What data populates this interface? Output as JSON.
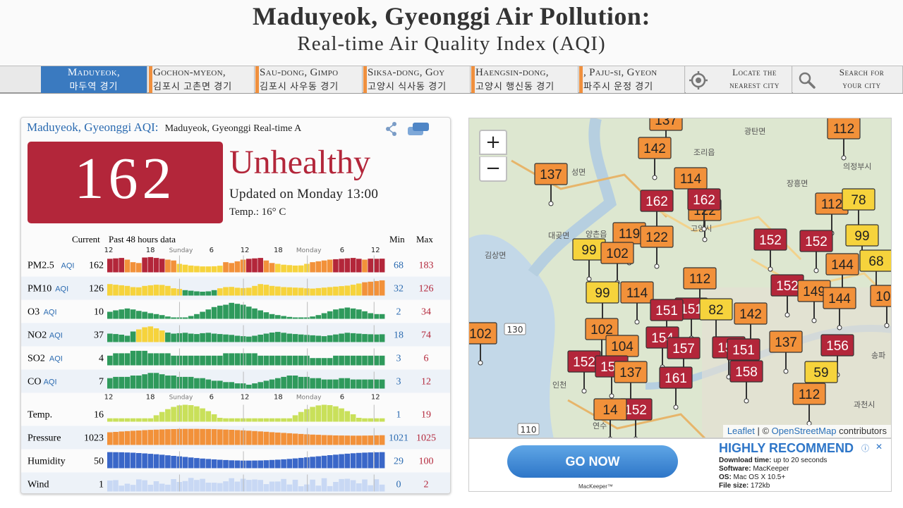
{
  "header": {
    "title": "Maduyeok, Gyeonggi Air Pollution:",
    "subtitle": "Real-time Air Quality Index (AQI)"
  },
  "tabs": [
    {
      "name": "Maduyeok,",
      "local": "마두역 경기",
      "active": true
    },
    {
      "name": "Gochon-myeon,",
      "local": "김포시 고촌면 경기",
      "active": false
    },
    {
      "name": "Sau-dong, Gimpo",
      "local": "김포시 사우동 경기",
      "active": false
    },
    {
      "name": "Siksa-dong, Goy",
      "local": "고양시 식사동 경기",
      "active": false
    },
    {
      "name": "Haengsin-dong,",
      "local": "고양시 행신동 경기",
      "active": false
    },
    {
      "name": ", Paju-si, Gyeon",
      "local": "파주시 운정 경기",
      "active": false
    }
  ],
  "tools": {
    "locate_line1": "Locate the",
    "locate_line2": "nearest city",
    "search_line1": "Search for",
    "search_line2": "your city"
  },
  "panel": {
    "city_link": "Maduyeok, Gyeonggi AQI:",
    "description": "Maduyeok, Gyeonggi Real-time A",
    "aqi": "162",
    "level": "Unhealthy",
    "updated": "Updated on Monday 13:00",
    "temp": "Temp.: 16° C",
    "aqi_color": "#b3263a"
  },
  "history": {
    "current_label": "Current",
    "past_label": "Past 48 hours data",
    "min_label": "Min",
    "max_label": "Max",
    "time_ticks": [
      "12",
      "18",
      "Sunday",
      "6",
      "12",
      "18",
      "Monday",
      "6",
      "12"
    ],
    "rows": [
      {
        "label": "PM2.5",
        "unit": "AQI",
        "current": "162",
        "min": "68",
        "max": "183",
        "kind": "aqi"
      },
      {
        "label": "PM10",
        "unit": "AQI",
        "current": "126",
        "min": "32",
        "max": "126",
        "kind": "aqi"
      },
      {
        "label": "O3",
        "unit": "AQI",
        "current": "10",
        "min": "2",
        "max": "34",
        "kind": "aqi"
      },
      {
        "label": "NO2",
        "unit": "AQI",
        "current": "37",
        "min": "18",
        "max": "74",
        "kind": "aqi"
      },
      {
        "label": "SO2",
        "unit": "AQI",
        "current": "4",
        "min": "3",
        "max": "6",
        "kind": "aqi"
      },
      {
        "label": "CO",
        "unit": "AQI",
        "current": "7",
        "min": "3",
        "max": "12",
        "kind": "aqi"
      },
      {
        "label": "Temp.",
        "unit": "",
        "current": "16",
        "min": "1",
        "max": "19",
        "kind": "temp"
      },
      {
        "label": "Pressure",
        "unit": "",
        "current": "1023",
        "min": "1021",
        "max": "1025",
        "kind": "pressure"
      },
      {
        "label": "Humidity",
        "unit": "",
        "current": "50",
        "min": "29",
        "max": "100",
        "kind": "humidity"
      },
      {
        "label": "Wind",
        "unit": "",
        "current": "1",
        "min": "0",
        "max": "2",
        "kind": "wind"
      }
    ],
    "colors": {
      "good": "#2f9a5c",
      "moderate": "#f6d33c",
      "sensitive": "#f2913a",
      "unhealthy": "#b3263a",
      "temp": "#c9e05a",
      "pressure": "#f2913a",
      "humidity": "#3a67c8",
      "wind": "#c8d8f4"
    }
  },
  "map": {
    "zoom_in": "+",
    "zoom_out": "−",
    "attribution_leaflet": "Leaflet",
    "attribution_sep": " | © ",
    "attribution_osm": "OpenStreetMap",
    "attribution_tail": " contributors",
    "markers": [
      {
        "aqi": "137",
        "c": "orange"
      },
      {
        "aqi": "112",
        "c": "orange"
      },
      {
        "aqi": "142",
        "c": "orange"
      },
      {
        "aqi": "137",
        "c": "orange"
      },
      {
        "aqi": "114",
        "c": "orange"
      },
      {
        "aqi": "162",
        "c": "red"
      },
      {
        "aqi": "122",
        "c": "orange"
      },
      {
        "aqi": "162",
        "c": "red"
      },
      {
        "aqi": "112",
        "c": "orange"
      },
      {
        "aqi": "78",
        "c": "yellow"
      },
      {
        "aqi": "119",
        "c": "orange"
      },
      {
        "aqi": "122",
        "c": "orange"
      },
      {
        "aqi": "152",
        "c": "red"
      },
      {
        "aqi": "152",
        "c": "red"
      },
      {
        "aqi": "99",
        "c": "yellow"
      },
      {
        "aqi": "99",
        "c": "yellow"
      },
      {
        "aqi": "102",
        "c": "orange"
      },
      {
        "aqi": "144",
        "c": "orange"
      },
      {
        "aqi": "68",
        "c": "yellow"
      },
      {
        "aqi": "112",
        "c": "orange"
      },
      {
        "aqi": "152",
        "c": "red"
      },
      {
        "aqi": "149",
        "c": "orange"
      },
      {
        "aqi": "99",
        "c": "yellow"
      },
      {
        "aqi": "114",
        "c": "orange"
      },
      {
        "aqi": "144",
        "c": "orange"
      },
      {
        "aqi": "109",
        "c": "orange"
      },
      {
        "aqi": "151",
        "c": "red"
      },
      {
        "aqi": "82",
        "c": "yellow"
      },
      {
        "aqi": "142",
        "c": "orange"
      },
      {
        "aqi": "151",
        "c": "red"
      },
      {
        "aqi": "102",
        "c": "orange"
      },
      {
        "aqi": "102",
        "c": "orange"
      },
      {
        "aqi": "154",
        "c": "red"
      },
      {
        "aqi": "151",
        "c": "red"
      },
      {
        "aqi": "104",
        "c": "orange"
      },
      {
        "aqi": "157",
        "c": "red"
      },
      {
        "aqi": "151",
        "c": "red"
      },
      {
        "aqi": "137",
        "c": "orange"
      },
      {
        "aqi": "156",
        "c": "red"
      },
      {
        "aqi": "152",
        "c": "red"
      },
      {
        "aqi": "154",
        "c": "red"
      },
      {
        "aqi": "137",
        "c": "orange"
      },
      {
        "aqi": "161",
        "c": "red"
      },
      {
        "aqi": "158",
        "c": "red"
      },
      {
        "aqi": "59",
        "c": "yellow"
      },
      {
        "aqi": "112",
        "c": "orange"
      },
      {
        "aqi": "152",
        "c": "red"
      },
      {
        "aqi": "14",
        "c": "orange"
      }
    ],
    "road_labels": [
      "130",
      "110"
    ],
    "place_labels": [
      "광탄면",
      "조리읍",
      "의정부시",
      "장흥면",
      "성면",
      "대곶면",
      "양촌읍",
      "김상면",
      "인천",
      "연수",
      "과천시",
      "고양시",
      "송파",
      "공단"
    ]
  },
  "ad": {
    "button": "GO NOW",
    "brand": "MacKeeper™",
    "headline": "HIGHLY RECOMMEND",
    "info_icon": "ⓘ",
    "close_icon": "✕",
    "line1_k": "Download time:",
    "line1_v": " up to 20 seconds",
    "line2_k": "Software:",
    "line2_v": " MacKeeper",
    "line3_k": "OS:",
    "line3_v": " Mac OS X 10.5+",
    "line4_k": "File size:",
    "line4_v": " 172kb"
  }
}
